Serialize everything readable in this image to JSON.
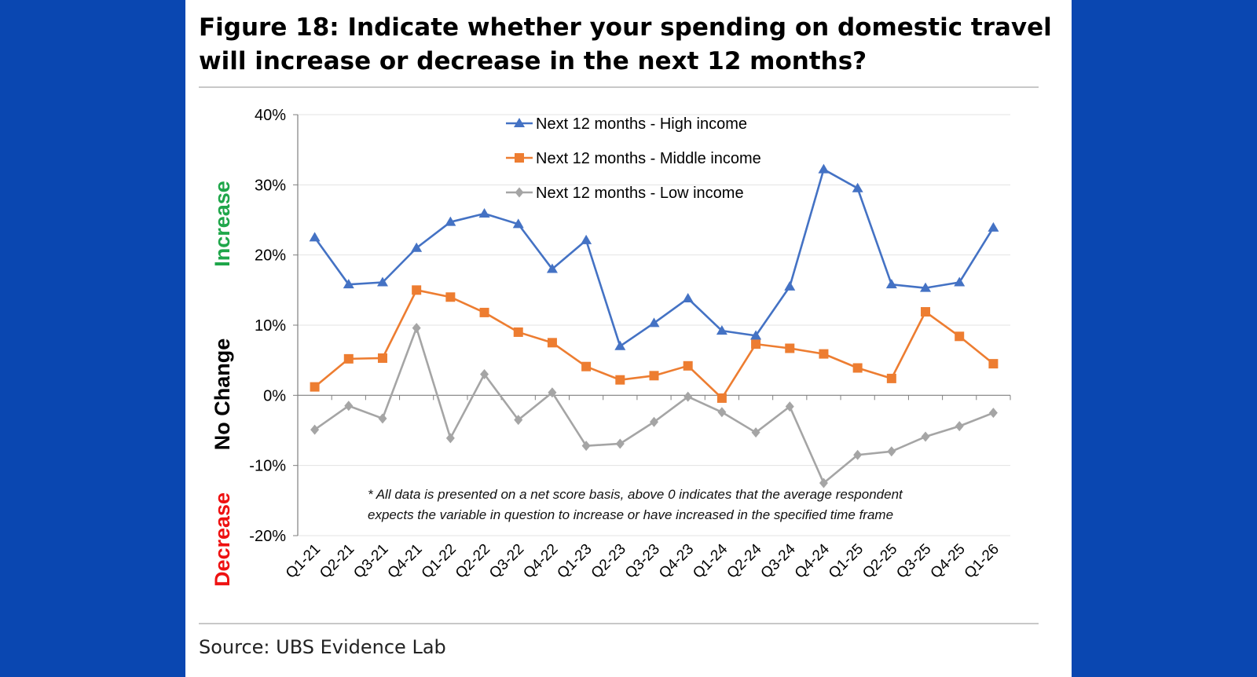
{
  "title": "Figure 18: Indicate whether your spending on domestic travel will increase or decrease in the next 12 months?",
  "source": "Source: UBS Evidence Lab",
  "side_labels": {
    "increase": "Increase",
    "no_change": "No Change",
    "decrease": "Decrease",
    "increase_color": "#1fa64a",
    "no_change_color": "#000000",
    "decrease_color": "#ee1111"
  },
  "footnote": [
    "* All data is presented on a net score basis, above 0 indicates that the average respondent",
    "expects the variable in question to increase or have increased in the specified time frame"
  ],
  "chart_data": {
    "type": "line",
    "categories": [
      "Q1-21",
      "Q2-21",
      "Q3-21",
      "Q4-21",
      "Q1-22",
      "Q2-22",
      "Q3-22",
      "Q4-22",
      "Q1-23",
      "Q2-23",
      "Q3-23",
      "Q4-23",
      "Q1-24",
      "Q2-24",
      "Q3-24",
      "Q4-24",
      "Q1-25",
      "Q2-25",
      "Q3-25",
      "Q4-25",
      "Q1-26"
    ],
    "ylim": [
      -20,
      40
    ],
    "yticks": [
      -20,
      -10,
      0,
      10,
      20,
      30,
      40
    ],
    "ytick_labels": [
      "-20%",
      "-10%",
      "0%",
      "10%",
      "20%",
      "30%",
      "40%"
    ],
    "grid": true,
    "legend_position": "top-center",
    "series": [
      {
        "name": "Next 12 months - High income",
        "color": "#4472c4",
        "marker": "triangle",
        "values": [
          22.5,
          15.8,
          16.1,
          21.0,
          24.7,
          25.9,
          24.4,
          18.0,
          22.1,
          7.0,
          10.3,
          13.8,
          9.2,
          8.5,
          15.5,
          32.2,
          29.5,
          15.8,
          15.3,
          16.1,
          23.9
        ]
      },
      {
        "name": "Next 12 months - Middle income",
        "color": "#ed7d31",
        "marker": "square",
        "values": [
          1.2,
          5.2,
          5.3,
          15.0,
          14.0,
          11.8,
          9.0,
          7.5,
          4.1,
          2.2,
          2.8,
          4.2,
          -0.4,
          7.3,
          6.7,
          5.9,
          3.9,
          2.4,
          11.9,
          8.4,
          4.5
        ]
      },
      {
        "name": "Next 12 months - Low income",
        "color": "#a5a5a5",
        "marker": "diamond",
        "values": [
          -4.9,
          -1.5,
          -3.3,
          9.6,
          -6.1,
          3.0,
          -3.5,
          0.4,
          -7.2,
          -6.9,
          -3.8,
          -0.2,
          -2.4,
          -5.3,
          -1.6,
          -12.5,
          -8.5,
          -8.0,
          -5.9,
          -4.4,
          -2.5
        ]
      }
    ]
  }
}
